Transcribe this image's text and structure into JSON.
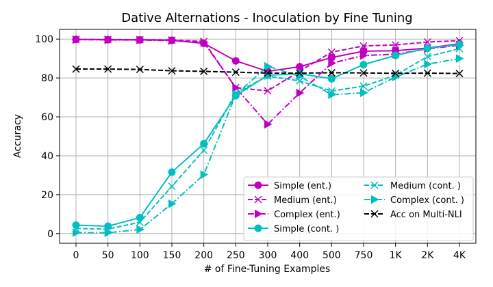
{
  "chart_data": {
    "type": "line",
    "title": "Dative Alternations - Inoculation by Fine Tuning",
    "xlabel": "# of Fine-Tuning Examples",
    "ylabel": "Accuracy",
    "categories": [
      "0",
      "50",
      "100",
      "150",
      "200",
      "250",
      "300",
      "400",
      "500",
      "750",
      "1K",
      "2K",
      "4K"
    ],
    "ylim": [
      -5,
      105
    ],
    "yticks": [
      0,
      20,
      40,
      60,
      80,
      100
    ],
    "grid": true,
    "legend_position": "lower-right",
    "legend_columns": 2,
    "series": [
      {
        "name": "Simple (ent.)",
        "color": "#c000c0",
        "linestyle": "solid",
        "marker": "circle",
        "values": [
          99.8,
          99.7,
          99.6,
          99.4,
          97.8,
          88.8,
          83.4,
          85.8,
          90.5,
          93.8,
          94.0,
          95.4,
          97.6
        ]
      },
      {
        "name": "Medium (ent.)",
        "color": "#c000c0",
        "linestyle": "dashed",
        "marker": "x",
        "values": [
          99.8,
          99.8,
          99.7,
          99.5,
          98.8,
          75.0,
          73.4,
          83.5,
          93.3,
          96.5,
          97.0,
          98.5,
          99.2
        ]
      },
      {
        "name": "Complex (ent.)",
        "color": "#c000c0",
        "linestyle": "dashdot",
        "marker": "triangle-right",
        "values": [
          99.7,
          99.6,
          99.5,
          99.2,
          98.3,
          75.0,
          56.2,
          72.3,
          87.6,
          91.6,
          92.2,
          95.0,
          96.8
        ]
      },
      {
        "name": "Simple (cont. )",
        "color": "#00bfbf",
        "linestyle": "solid",
        "marker": "circle",
        "values": [
          4.3,
          3.8,
          8.2,
          31.6,
          46.2,
          70.9,
          81.4,
          82.2,
          79.6,
          86.9,
          91.6,
          95.3,
          97.2
        ]
      },
      {
        "name": "Medium (cont. )",
        "color": "#00bfbf",
        "linestyle": "dashed",
        "marker": "x",
        "values": [
          2.6,
          2.3,
          5.8,
          24.3,
          42.8,
          72.3,
          81.0,
          78.5,
          73.3,
          75.8,
          81.4,
          91.0,
          95.1
        ]
      },
      {
        "name": "Complex (cont. )",
        "color": "#00bfbf",
        "linestyle": "dashdot",
        "marker": "triangle-right",
        "values": [
          0.5,
          0.4,
          2.1,
          15.3,
          30.3,
          71.5,
          86.0,
          80.9,
          71.4,
          72.4,
          80.5,
          87.1,
          90.0
        ]
      },
      {
        "name": "Acc on Multi-NLI",
        "color": "#000000",
        "linestyle": "dashed",
        "marker": "x",
        "values": [
          84.6,
          84.6,
          84.4,
          83.7,
          83.4,
          83.0,
          82.5,
          82.5,
          82.7,
          82.6,
          82.4,
          82.5,
          82.3
        ]
      }
    ]
  }
}
